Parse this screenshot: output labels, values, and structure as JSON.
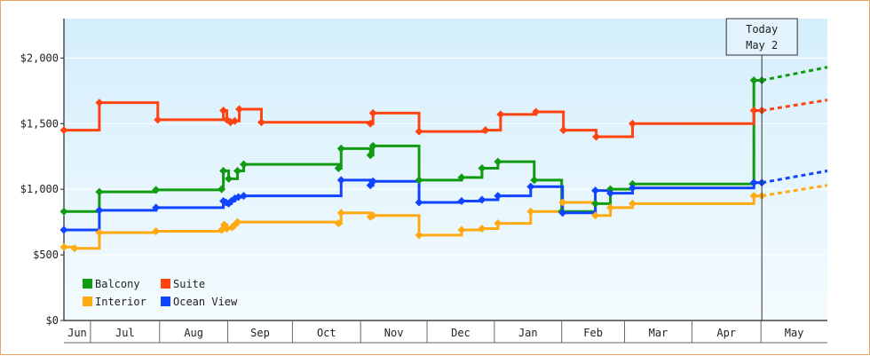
{
  "chart_data": {
    "type": "line",
    "style": "step",
    "ylim": [
      0,
      2300
    ],
    "yticks": [
      {
        "value": 0,
        "label": "$0"
      },
      {
        "value": 500,
        "label": "$500"
      },
      {
        "value": 1000,
        "label": "$1,000"
      },
      {
        "value": 1500,
        "label": "$1,500"
      },
      {
        "value": 2000,
        "label": "$2,000"
      }
    ],
    "months": [
      {
        "label": "Jun",
        "start": 0,
        "end": 30
      },
      {
        "label": "Jul",
        "start": 30,
        "end": 108
      },
      {
        "label": "Aug",
        "start": 108,
        "end": 185
      },
      {
        "label": "Sep",
        "start": 185,
        "end": 258
      },
      {
        "label": "Oct",
        "start": 258,
        "end": 335
      },
      {
        "label": "Nov",
        "start": 335,
        "end": 410
      },
      {
        "label": "Dec",
        "start": 410,
        "end": 486
      },
      {
        "label": "Jan",
        "start": 486,
        "end": 562
      },
      {
        "label": "Feb",
        "start": 562,
        "end": 633
      },
      {
        "label": "Mar",
        "start": 633,
        "end": 709
      },
      {
        "label": "Apr",
        "start": 709,
        "end": 787
      },
      {
        "label": "May",
        "start": 787,
        "end": 862
      }
    ],
    "x_range": [
      0,
      862
    ],
    "today": {
      "x": 788,
      "line1": "Today",
      "line2": "May 2"
    },
    "series": [
      {
        "name": "Balcony",
        "color": "#119b11",
        "points": [
          [
            0,
            830
          ],
          [
            8,
            830
          ],
          [
            37,
            830
          ],
          [
            40,
            980
          ],
          [
            102,
            980
          ],
          [
            104,
            995
          ],
          [
            178,
            1000
          ],
          [
            180,
            1140
          ],
          [
            183,
            1140
          ],
          [
            186,
            1080
          ],
          [
            193,
            1080
          ],
          [
            196,
            1140
          ],
          [
            203,
            1190
          ],
          [
            221,
            1190
          ],
          [
            310,
            1160
          ],
          [
            313,
            1310
          ],
          [
            343,
            1310
          ],
          [
            346,
            1260
          ],
          [
            349,
            1330
          ],
          [
            399,
            1330
          ],
          [
            401,
            1070
          ],
          [
            446,
            1070
          ],
          [
            449,
            1090
          ],
          [
            469,
            1090
          ],
          [
            472,
            1160
          ],
          [
            484,
            1160
          ],
          [
            490,
            1210
          ],
          [
            525,
            1210
          ],
          [
            531,
            1070
          ],
          [
            558,
            1070
          ],
          [
            562,
            830
          ],
          [
            597,
            830
          ],
          [
            600,
            890
          ],
          [
            614,
            890
          ],
          [
            617,
            1000
          ],
          [
            640,
            1000
          ],
          [
            642,
            1040
          ],
          [
            776,
            1040
          ],
          [
            779,
            1830
          ],
          [
            788,
            1830
          ]
        ],
        "forecast": [
          788,
          1830,
          862,
          1930
        ]
      },
      {
        "name": "Suite",
        "color": "#ff4411",
        "points": [
          [
            0,
            1450
          ],
          [
            37,
            1450
          ],
          [
            40,
            1660
          ],
          [
            103,
            1660
          ],
          [
            106,
            1530
          ],
          [
            178,
            1530
          ],
          [
            180,
            1600
          ],
          [
            184,
            1530
          ],
          [
            188,
            1510
          ],
          [
            193,
            1520
          ],
          [
            196,
            1520
          ],
          [
            198,
            1610
          ],
          [
            221,
            1610
          ],
          [
            223,
            1510
          ],
          [
            312,
            1510
          ],
          [
            346,
            1500
          ],
          [
            349,
            1580
          ],
          [
            399,
            1580
          ],
          [
            401,
            1440
          ],
          [
            471,
            1440
          ],
          [
            476,
            1450
          ],
          [
            490,
            1450
          ],
          [
            493,
            1570
          ],
          [
            527,
            1570
          ],
          [
            533,
            1590
          ],
          [
            561,
            1590
          ],
          [
            564,
            1450
          ],
          [
            598,
            1450
          ],
          [
            601,
            1400
          ],
          [
            640,
            1400
          ],
          [
            642,
            1500
          ],
          [
            776,
            1500
          ],
          [
            779,
            1600
          ],
          [
            788,
            1600
          ]
        ],
        "forecast": [
          788,
          1600,
          862,
          1680
        ]
      },
      {
        "name": "Interior",
        "color": "#ffaa11",
        "points": [
          [
            0,
            560
          ],
          [
            8,
            560
          ],
          [
            12,
            550
          ],
          [
            37,
            550
          ],
          [
            40,
            670
          ],
          [
            102,
            670
          ],
          [
            104,
            680
          ],
          [
            178,
            690
          ],
          [
            181,
            730
          ],
          [
            184,
            700
          ],
          [
            190,
            710
          ],
          [
            193,
            730
          ],
          [
            196,
            750
          ],
          [
            221,
            750
          ],
          [
            310,
            740
          ],
          [
            313,
            820
          ],
          [
            342,
            820
          ],
          [
            346,
            790
          ],
          [
            349,
            800
          ],
          [
            399,
            800
          ],
          [
            401,
            650
          ],
          [
            446,
            650
          ],
          [
            449,
            690
          ],
          [
            469,
            690
          ],
          [
            472,
            700
          ],
          [
            484,
            700
          ],
          [
            490,
            740
          ],
          [
            525,
            740
          ],
          [
            527,
            830
          ],
          [
            560,
            830
          ],
          [
            563,
            900
          ],
          [
            597,
            900
          ],
          [
            600,
            800
          ],
          [
            614,
            800
          ],
          [
            617,
            860
          ],
          [
            640,
            860
          ],
          [
            642,
            890
          ],
          [
            776,
            890
          ],
          [
            779,
            950
          ],
          [
            788,
            950
          ]
        ],
        "forecast": [
          788,
          950,
          862,
          1030
        ]
      },
      {
        "name": "Ocean View",
        "color": "#1144ff",
        "points": [
          [
            0,
            690
          ],
          [
            8,
            690
          ],
          [
            37,
            690
          ],
          [
            40,
            840
          ],
          [
            102,
            840
          ],
          [
            104,
            860
          ],
          [
            178,
            860
          ],
          [
            180,
            910
          ],
          [
            183,
            900
          ],
          [
            186,
            890
          ],
          [
            189,
            910
          ],
          [
            193,
            930
          ],
          [
            197,
            940
          ],
          [
            203,
            950
          ],
          [
            221,
            950
          ],
          [
            310,
            950
          ],
          [
            313,
            1070
          ],
          [
            343,
            1070
          ],
          [
            346,
            1030
          ],
          [
            349,
            1060
          ],
          [
            399,
            1060
          ],
          [
            401,
            900
          ],
          [
            446,
            900
          ],
          [
            449,
            910
          ],
          [
            469,
            910
          ],
          [
            472,
            920
          ],
          [
            484,
            920
          ],
          [
            490,
            950
          ],
          [
            525,
            950
          ],
          [
            527,
            1020
          ],
          [
            560,
            1020
          ],
          [
            563,
            820
          ],
          [
            597,
            820
          ],
          [
            600,
            990
          ],
          [
            614,
            990
          ],
          [
            617,
            970
          ],
          [
            640,
            970
          ],
          [
            642,
            1010
          ],
          [
            776,
            1010
          ],
          [
            779,
            1050
          ],
          [
            788,
            1050
          ]
        ],
        "forecast": [
          788,
          1050,
          862,
          1140
        ]
      }
    ],
    "legend": [
      {
        "name": "Balcony",
        "color": "#119b11"
      },
      {
        "name": "Suite",
        "color": "#ff4411"
      },
      {
        "name": "Interior",
        "color": "#ffaa11"
      },
      {
        "name": "Ocean View",
        "color": "#1144ff"
      }
    ],
    "legend_position": "bottom-left"
  }
}
